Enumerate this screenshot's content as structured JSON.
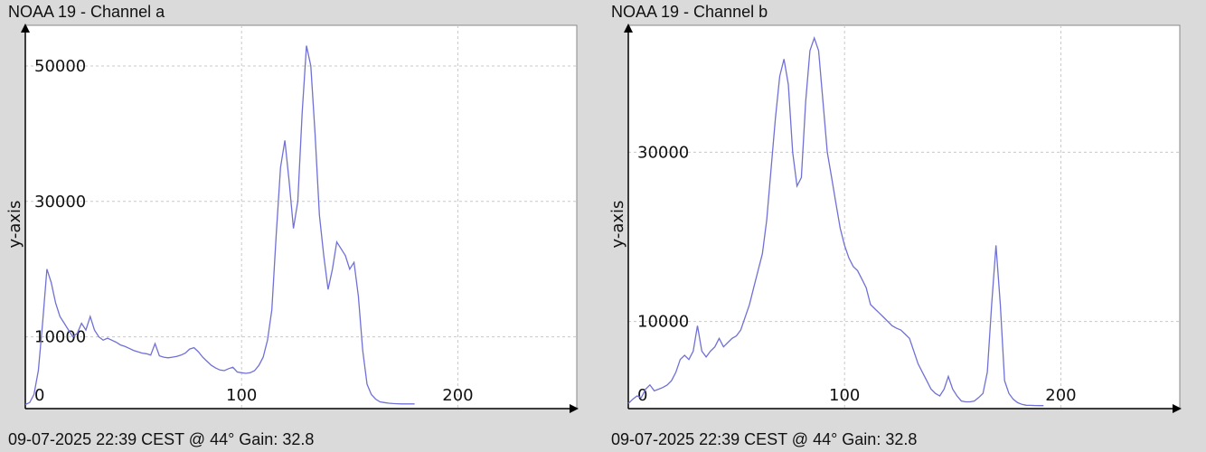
{
  "colors": {
    "line": "#7070d6",
    "grid": "#c8c8c8",
    "axis": "#000000",
    "plot_bg": "#ffffff",
    "page_bg": "#dadada"
  },
  "charts": [
    {
      "title": "NOAA 19 - Channel a",
      "footer": "09-07-2025 22:39 CEST @ 44° Gain: 32.8"
    },
    {
      "title": "NOAA 19 - Channel b",
      "footer": "09-07-2025 22:39 CEST @ 44° Gain: 32.8"
    }
  ],
  "chart_data": [
    {
      "type": "line",
      "title": "NOAA 19 - Channel a",
      "xlabel": "",
      "ylabel": "y-axis",
      "xlim": [
        0,
        255
      ],
      "ylim": [
        -600,
        56000
      ],
      "xticks": [
        0,
        100,
        200
      ],
      "yticks": [
        10000,
        30000,
        50000
      ],
      "grid": true,
      "x": [
        0,
        2,
        4,
        6,
        8,
        10,
        12,
        14,
        16,
        18,
        20,
        22,
        24,
        26,
        28,
        30,
        32,
        34,
        36,
        38,
        40,
        42,
        44,
        46,
        48,
        50,
        52,
        54,
        56,
        58,
        60,
        62,
        64,
        66,
        68,
        70,
        72,
        74,
        76,
        78,
        80,
        82,
        84,
        86,
        88,
        90,
        92,
        94,
        96,
        98,
        100,
        102,
        104,
        106,
        108,
        110,
        112,
        114,
        116,
        118,
        120,
        122,
        124,
        126,
        128,
        130,
        132,
        134,
        136,
        138,
        140,
        142,
        144,
        146,
        148,
        150,
        152,
        154,
        156,
        158,
        160,
        162,
        164,
        166,
        168,
        170,
        172,
        174,
        176,
        178,
        180
      ],
      "series": [
        {
          "values": [
            0,
            300,
            1500,
            5000,
            12000,
            20000,
            18000,
            15000,
            13000,
            12000,
            11000,
            10000,
            10500,
            12000,
            11000,
            13000,
            11000,
            10000,
            9500,
            9800,
            9500,
            9200,
            8800,
            8600,
            8300,
            8000,
            7800,
            7600,
            7500,
            7300,
            9000,
            7200,
            7000,
            6900,
            7000,
            7100,
            7300,
            7600,
            8200,
            8400,
            7800,
            7000,
            6400,
            5800,
            5400,
            5100,
            5000,
            5300,
            5500,
            4800,
            4700,
            4600,
            4700,
            5000,
            5800,
            7000,
            9500,
            14000,
            25000,
            35000,
            39000,
            33000,
            26000,
            30000,
            43000,
            53000,
            50000,
            40000,
            28000,
            22000,
            17000,
            20000,
            24000,
            23000,
            22000,
            20000,
            21000,
            16000,
            8000,
            3000,
            1500,
            800,
            400,
            300,
            200,
            150,
            120,
            100,
            100,
            100,
            100
          ]
        }
      ]
    },
    {
      "type": "line",
      "title": "NOAA 19 - Channel b",
      "xlabel": "",
      "ylabel": "y-axis",
      "xlim": [
        0,
        255
      ],
      "ylim": [
        -300,
        45000
      ],
      "xticks": [
        0,
        100,
        200
      ],
      "yticks": [
        10000,
        30000
      ],
      "grid": true,
      "x": [
        0,
        2,
        4,
        6,
        8,
        10,
        12,
        14,
        16,
        18,
        20,
        22,
        24,
        26,
        28,
        30,
        32,
        34,
        36,
        38,
        40,
        42,
        44,
        46,
        48,
        50,
        52,
        54,
        56,
        58,
        60,
        62,
        64,
        66,
        68,
        70,
        72,
        74,
        76,
        78,
        80,
        82,
        84,
        86,
        88,
        90,
        92,
        94,
        96,
        98,
        100,
        102,
        104,
        106,
        108,
        110,
        112,
        114,
        116,
        118,
        120,
        122,
        124,
        126,
        128,
        130,
        132,
        134,
        136,
        138,
        140,
        142,
        144,
        146,
        148,
        150,
        152,
        154,
        156,
        158,
        160,
        162,
        164,
        166,
        168,
        170,
        172,
        174,
        176,
        178,
        180,
        182,
        184,
        186,
        188,
        190,
        192
      ],
      "series": [
        {
          "values": [
            300,
            800,
            1200,
            1000,
            2000,
            2500,
            1800,
            2000,
            2200,
            2500,
            3000,
            4000,
            5500,
            6000,
            5500,
            6500,
            9500,
            6500,
            5800,
            6500,
            7000,
            8000,
            7000,
            7500,
            8000,
            8300,
            9000,
            10500,
            12000,
            14000,
            16000,
            18000,
            22000,
            28000,
            34000,
            39000,
            41000,
            38000,
            30000,
            26000,
            27000,
            36000,
            42000,
            43500,
            42000,
            36000,
            30000,
            27000,
            24000,
            21000,
            19000,
            17500,
            16500,
            16000,
            15000,
            14000,
            12000,
            11500,
            11000,
            10500,
            10000,
            9500,
            9200,
            9000,
            8500,
            8000,
            6500,
            5000,
            4000,
            3000,
            2000,
            1500,
            1200,
            2000,
            3500,
            2000,
            1200,
            600,
            500,
            500,
            600,
            1000,
            1500,
            4000,
            12000,
            19000,
            12000,
            3000,
            1500,
            800,
            400,
            200,
            100,
            80,
            60,
            50,
            50
          ]
        }
      ]
    }
  ]
}
